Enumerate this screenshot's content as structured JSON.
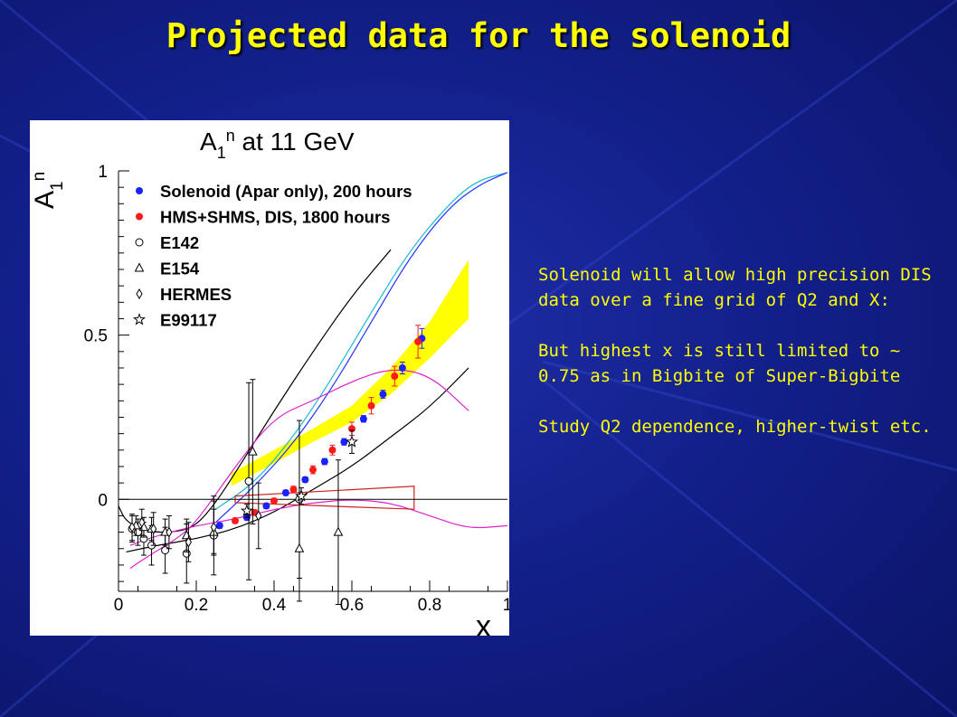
{
  "slide": {
    "title": "Projected data for the solenoid",
    "notes": [
      "Solenoid will allow high precision DIS data  over a fine grid of Q2 and X:",
      "But highest x is still limited to ~ 0.75 as in Bigbite of Super-Bigbite",
      "Study Q2 dependence, higher-twist etc."
    ],
    "colors": {
      "background": "#13208c",
      "title": "#ffff00",
      "text": "#ffff00"
    }
  },
  "chart_data": {
    "type": "scatter",
    "title": "A1n at 11 GeV",
    "title_main": "A",
    "title_sub": "1",
    "title_sup": "n",
    "title_rest": " at 11 GeV",
    "xlabel": "x",
    "ylabel_main": "A",
    "ylabel_sub": "1",
    "ylabel_sup": "n",
    "xlim": [
      0,
      1
    ],
    "ylim": [
      -0.28,
      1.0
    ],
    "xticks": [
      {
        "v": 0,
        "label": "0"
      },
      {
        "v": 0.2,
        "label": "0.2"
      },
      {
        "v": 0.4,
        "label": "0.4"
      },
      {
        "v": 0.6,
        "label": "0.6"
      },
      {
        "v": 0.8,
        "label": "0.8"
      },
      {
        "v": 1.0,
        "label": "1"
      }
    ],
    "yticks": [
      {
        "v": 0,
        "label": "0"
      },
      {
        "v": 0.5,
        "label": "0.5"
      },
      {
        "v": 1.0,
        "label": "1"
      }
    ],
    "legend": [
      {
        "label": "Solenoid (Apar only), 200 hours",
        "marker": "filled-circle",
        "color": "#1a22ff"
      },
      {
        "label": "HMS+SHMS, DIS, 1800 hours",
        "marker": "filled-circle",
        "color": "#ff1a1a"
      },
      {
        "label": "E142",
        "marker": "open-circle",
        "color": "#000000"
      },
      {
        "label": "E154",
        "marker": "open-triangle",
        "color": "#000000"
      },
      {
        "label": "HERMES",
        "marker": "open-diamond",
        "color": "#000000"
      },
      {
        "label": "E99117",
        "marker": "open-star",
        "color": "#000000"
      }
    ],
    "series": [
      {
        "name": "Solenoid (Apar only), 200 hours",
        "color": "#1a22ff",
        "x": [
          0.26,
          0.33,
          0.38,
          0.43,
          0.48,
          0.53,
          0.58,
          0.63,
          0.68,
          0.73,
          0.78
        ],
        "y": [
          -0.08,
          -0.055,
          -0.02,
          0.02,
          0.06,
          0.115,
          0.175,
          0.245,
          0.32,
          0.4,
          0.49
        ],
        "err": [
          0.008,
          0.008,
          0.008,
          0.008,
          0.008,
          0.009,
          0.01,
          0.01,
          0.012,
          0.018,
          0.03
        ]
      },
      {
        "name": "HMS+SHMS, DIS, 1800 hours",
        "color": "#ff1a1a",
        "x": [
          0.3,
          0.35,
          0.4,
          0.45,
          0.5,
          0.55,
          0.6,
          0.65,
          0.71,
          0.77
        ],
        "y": [
          -0.065,
          -0.04,
          -0.005,
          0.03,
          0.09,
          0.15,
          0.215,
          0.285,
          0.375,
          0.48
        ],
        "err": [
          0.008,
          0.008,
          0.008,
          0.01,
          0.012,
          0.015,
          0.02,
          0.025,
          0.03,
          0.05
        ]
      },
      {
        "name": "E142",
        "marker": "open-circle",
        "x": [
          0.035,
          0.05,
          0.065,
          0.085,
          0.12,
          0.175,
          0.245,
          0.335,
          0.465
        ],
        "y": [
          -0.09,
          -0.1,
          -0.12,
          -0.14,
          -0.155,
          -0.165,
          -0.11,
          0.055,
          0.0
        ],
        "err": [
          0.04,
          0.04,
          0.05,
          0.06,
          0.07,
          0.09,
          0.12,
          0.3,
          0.24
        ]
      },
      {
        "name": "E154",
        "marker": "open-triangle",
        "x": [
          0.045,
          0.065,
          0.085,
          0.12,
          0.175,
          0.245,
          0.345,
          0.465,
          0.565
        ],
        "y": [
          -0.08,
          -0.085,
          -0.09,
          -0.1,
          -0.11,
          -0.1,
          0.145,
          -0.15,
          -0.1
        ],
        "err": [
          0.03,
          0.03,
          0.035,
          0.04,
          0.05,
          0.07,
          0.22,
          0.16,
          0.22
        ]
      },
      {
        "name": "HERMES",
        "marker": "open-diamond",
        "x": [
          0.035,
          0.06,
          0.09,
          0.13,
          0.18,
          0.245,
          0.36
        ],
        "y": [
          -0.085,
          -0.07,
          -0.09,
          -0.1,
          -0.13,
          -0.085,
          -0.05
        ],
        "err": [
          0.04,
          0.04,
          0.05,
          0.05,
          0.06,
          0.08,
          0.1
        ]
      },
      {
        "name": "E99117",
        "marker": "open-star",
        "x": [
          0.33,
          0.47,
          0.6
        ],
        "y": [
          -0.035,
          0.01,
          0.175
        ],
        "err": [
          0.02,
          0.025,
          0.035
        ]
      }
    ],
    "bands": [
      {
        "type": "yellow-band",
        "color": "#ffff00",
        "x": [
          0.29,
          0.4,
          0.5,
          0.6,
          0.7,
          0.8,
          0.9
        ],
        "lower": [
          0.04,
          0.11,
          0.175,
          0.235,
          0.32,
          0.43,
          0.55
        ],
        "upper": [
          0.08,
          0.15,
          0.215,
          0.285,
          0.4,
          0.54,
          0.73
        ]
      }
    ],
    "systematics_box": {
      "color": "#cc2222",
      "x": [
        0.3,
        0.76
      ],
      "lower": [
        -0.01,
        -0.03
      ],
      "upper": [
        0.01,
        0.04
      ]
    },
    "curves": [
      {
        "color": "#1ab8d6",
        "x": [
          0.25,
          0.35,
          0.45,
          0.55,
          0.65,
          0.75,
          0.85,
          0.92,
          1.0
        ],
        "y": [
          -0.03,
          0.05,
          0.19,
          0.37,
          0.57,
          0.76,
          0.9,
          0.97,
          0.995
        ]
      },
      {
        "color": "#2233ff",
        "x": [
          0.25,
          0.35,
          0.45,
          0.55,
          0.65,
          0.75,
          0.85,
          0.93,
          1.0
        ],
        "y": [
          -0.07,
          0.04,
          0.17,
          0.34,
          0.54,
          0.74,
          0.89,
          0.96,
          0.995
        ]
      },
      {
        "color": "#000000",
        "x": [
          0.0,
          0.02,
          0.08,
          0.15,
          0.2,
          0.25,
          0.3,
          0.4,
          0.5,
          0.6,
          0.7
        ],
        "y": [
          -0.02,
          -0.07,
          -0.1,
          -0.1,
          -0.08,
          -0.01,
          0.08,
          0.27,
          0.45,
          0.62,
          0.76
        ]
      },
      {
        "color": "#000000",
        "x": [
          0.02,
          0.1,
          0.2,
          0.3,
          0.4,
          0.5,
          0.6,
          0.7,
          0.8,
          0.9
        ],
        "y": [
          -0.16,
          -0.14,
          -0.12,
          -0.09,
          -0.04,
          0.03,
          0.1,
          0.19,
          0.28,
          0.4
        ]
      },
      {
        "color": "#dd22cc",
        "x": [
          0.03,
          0.08,
          0.15,
          0.2,
          0.3,
          0.4,
          0.5,
          0.6,
          0.7,
          0.8,
          0.9
        ],
        "y": [
          -0.21,
          -0.17,
          -0.12,
          -0.07,
          0.1,
          0.25,
          0.3,
          0.36,
          0.4,
          0.38,
          0.27
        ]
      },
      {
        "color": "#dd22cc",
        "x": [
          0.03,
          0.1,
          0.2,
          0.3,
          0.4,
          0.5,
          0.6,
          0.7,
          0.8,
          0.9,
          1.0
        ],
        "y": [
          -0.14,
          -0.11,
          -0.08,
          -0.06,
          -0.03,
          -0.01,
          0.0,
          -0.01,
          -0.05,
          -0.09,
          -0.08
        ]
      }
    ]
  }
}
